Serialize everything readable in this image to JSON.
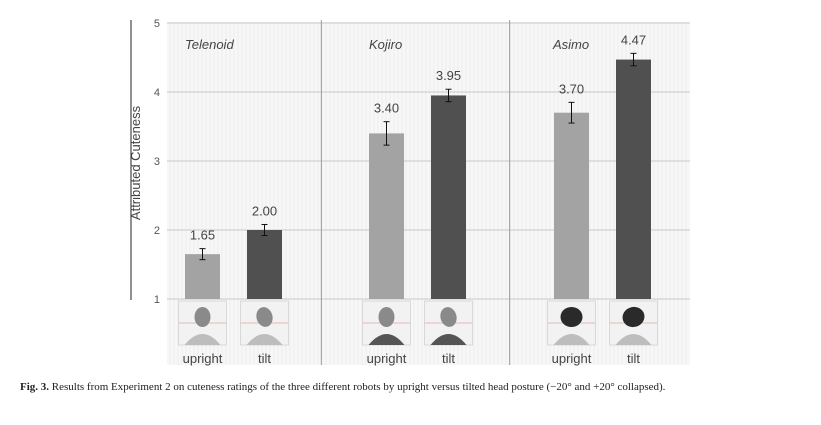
{
  "chart_data": {
    "type": "bar",
    "ylabel": "Attributed Cuteness",
    "ylim": [
      1,
      5
    ],
    "yticks": [
      1,
      2,
      3,
      4,
      5
    ],
    "grid": true,
    "panels": [
      {
        "robot": "Telenoid",
        "bars": [
          {
            "category": "upright",
            "value": 1.65,
            "label": "1.65",
            "error": 0.08
          },
          {
            "category": "tilt",
            "value": 2.0,
            "label": "2.00",
            "error": 0.08
          }
        ]
      },
      {
        "robot": "Kojiro",
        "bars": [
          {
            "category": "upright",
            "value": 3.4,
            "label": "3.40",
            "error": 0.17
          },
          {
            "category": "tilt",
            "value": 3.95,
            "label": "3.95",
            "error": 0.09
          }
        ]
      },
      {
        "robot": "Asimo",
        "bars": [
          {
            "category": "upright",
            "value": 3.7,
            "label": "3.70",
            "error": 0.15
          },
          {
            "category": "tilt",
            "value": 4.47,
            "label": "4.47",
            "error": 0.09
          }
        ]
      }
    ],
    "colors": {
      "upright": "#a3a3a3",
      "tilt": "#505050"
    }
  },
  "caption": {
    "figure_label": "Fig. 3.",
    "text": "Results from Experiment 2 on cuteness ratings of the three different robots by upright versus tilted head posture (−20° and +20° collapsed)."
  }
}
